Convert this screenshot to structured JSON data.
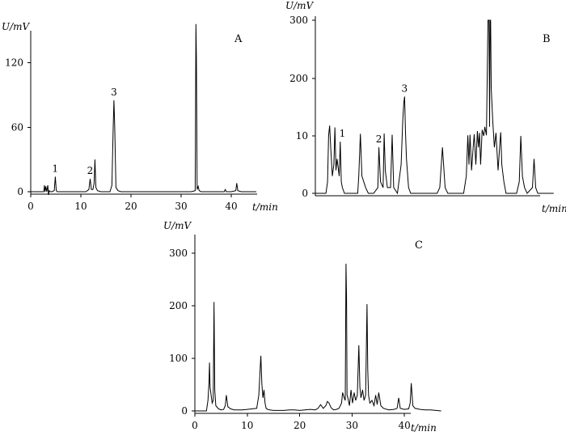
{
  "chart_data": [
    {
      "type": "line",
      "panel_label": "A",
      "ylabel": "U/mV",
      "xlabel": "t/min",
      "xlim": [
        0,
        45
      ],
      "ylim": [
        -3,
        156
      ],
      "x_ticks": [
        0,
        10,
        20,
        30,
        40
      ],
      "y_ticks": [
        0,
        60,
        120
      ],
      "grid": false,
      "series": [
        {
          "x": [
            0,
            2.6,
            2.75,
            2.85,
            3.0,
            3.2,
            3.4,
            3.55,
            3.7,
            3.9,
            4.2,
            4.7,
            4.9,
            5.1,
            5.3,
            6,
            7,
            8,
            9,
            10,
            11,
            11.6,
            11.85,
            12.1,
            12.4,
            12.65,
            12.8,
            13.0,
            13.3,
            14,
            15,
            15.8,
            16.2,
            16.45,
            16.6,
            16.75,
            17.0,
            17.4,
            18,
            19,
            20,
            21,
            22,
            23,
            24,
            25,
            26,
            27,
            28,
            29,
            30,
            31,
            32,
            32.8,
            32.95,
            33.05,
            33.2,
            33.4,
            33.6,
            34,
            35,
            36,
            37,
            38,
            38.6,
            38.8,
            39,
            40,
            40.9,
            41.1,
            41.3,
            42,
            43,
            44,
            45
          ],
          "y": [
            0,
            0,
            6,
            0,
            5,
            0,
            6,
            -3,
            1,
            0,
            0,
            1,
            14,
            1,
            0,
            0,
            0,
            0,
            0,
            0,
            0,
            2,
            12,
            2,
            2,
            8,
            30,
            4,
            1,
            0,
            0,
            0,
            6,
            60,
            85,
            60,
            4,
            1,
            0,
            0,
            0,
            0,
            0,
            0,
            0,
            0,
            0,
            0,
            0,
            0,
            0,
            0,
            0,
            1,
            156,
            125,
            2,
            5,
            1,
            0,
            0,
            0,
            0,
            0,
            0,
            2,
            0,
            0,
            1,
            8,
            1,
            0,
            0,
            0,
            0
          ]
        }
      ],
      "annotations": [
        {
          "text": "1",
          "x": 4.9,
          "y": 14
        },
        {
          "text": "2",
          "x": 11.85,
          "y": 12
        },
        {
          "text": "3",
          "x": 16.6,
          "y": 85
        }
      ]
    },
    {
      "type": "line",
      "panel_label": "B",
      "ylabel": "U/mV",
      "xlabel": "t/min",
      "xlim": [
        0,
        45
      ],
      "y_ticks": [
        0,
        10,
        200,
        300
      ],
      "grid": false,
      "series": [
        {
          "x": [
            0,
            2.0,
            2.3,
            2.5,
            2.7,
            2.9,
            3.2,
            3.5,
            3.7,
            3.9,
            4.1,
            4.5,
            4.7,
            4.9,
            5.1,
            5.5,
            6,
            7,
            8,
            8.2,
            8.5,
            8.8,
            9.5,
            10,
            11,
            11.8,
            12.0,
            12.3,
            12.8,
            13.0,
            13.2,
            13.6,
            14.2,
            14.5,
            14.8,
            15.5,
            16.2,
            16.5,
            16.7,
            16.85,
            17.0,
            17.2,
            17.6,
            18,
            19,
            20,
            21,
            22,
            23,
            23.5,
            24.0,
            24.5,
            25,
            26,
            27,
            28,
            28.5,
            28.8,
            29.0,
            29.2,
            29.5,
            29.8,
            30.0,
            30.3,
            30.6,
            30.8,
            31.0,
            31.2,
            31.5,
            31.8,
            32.0,
            32.3,
            32.6,
            32.7,
            32.75,
            32.8,
            32.9,
            33.0,
            33.05,
            33.1,
            33.2,
            33.5,
            33.8,
            34.1,
            34.5,
            34.8,
            35.0,
            35.2,
            35.6,
            36,
            37,
            38,
            38.5,
            38.8,
            39.1,
            39.5,
            40,
            41,
            41.3,
            41.6,
            42,
            43,
            44,
            45
          ],
          "y": [
            0,
            0,
            2,
            12,
            44,
            8,
            3,
            5,
            38,
            4,
            6,
            3,
            9,
            2,
            1,
            0,
            0,
            0,
            0,
            3,
            17,
            3,
            1,
            0,
            0,
            1,
            8,
            2,
            1,
            18,
            4,
            1,
            1,
            14,
            1,
            0,
            5,
            60,
            120,
            140,
            30,
            6,
            1,
            0,
            0,
            0,
            0,
            0,
            0,
            1,
            8,
            1,
            0,
            0,
            0,
            0,
            3,
            12,
            5,
            14,
            4,
            8,
            15,
            5,
            26,
            8,
            20,
            5,
            30,
            10,
            40,
            12,
            300,
            300,
            300,
            300,
            40,
            300,
            300,
            300,
            170,
            60,
            8,
            20,
            4,
            8,
            22,
            5,
            2,
            0,
            0,
            0,
            2,
            10,
            3,
            1,
            0,
            1,
            6,
            1,
            0,
            0,
            0,
            0
          ]
        }
      ],
      "annotations": [
        {
          "text": "1",
          "x": 5.1,
          "y": 9
        },
        {
          "text": "2",
          "x": 12.0,
          "y": 8
        },
        {
          "text": "3",
          "x": 16.85,
          "y": 140
        }
      ]
    },
    {
      "type": "line",
      "panel_label": "C",
      "ylabel": "U/mV",
      "xlabel": "t/min",
      "xlim": [
        0,
        47
      ],
      "ylim": [
        -10,
        310
      ],
      "x_ticks": [
        0,
        10,
        20,
        30,
        40
      ],
      "y_ticks": [
        0,
        100,
        200,
        300
      ],
      "grid": false,
      "series": [
        {
          "x": [
            0,
            2.2,
            2.5,
            2.7,
            2.8,
            2.9,
            3.1,
            3.3,
            3.5,
            3.65,
            3.8,
            4.0,
            4.5,
            5.0,
            5.5,
            5.8,
            6.0,
            6.3,
            6.8,
            7.5,
            8,
            9,
            10,
            11,
            11.8,
            12.2,
            12.4,
            12.6,
            12.8,
            13.0,
            13.2,
            13.4,
            13.6,
            13.9,
            14.3,
            15,
            16,
            17,
            18,
            19,
            20,
            21,
            22,
            23,
            23.5,
            24.0,
            24.5,
            25.0,
            25.3,
            25.6,
            26.0,
            26.5,
            27,
            27.5,
            28.0,
            28.2,
            28.5,
            28.7,
            28.85,
            28.95,
            29.05,
            29.2,
            29.5,
            29.8,
            30.1,
            30.4,
            30.7,
            31.0,
            31.3,
            31.5,
            31.7,
            32.0,
            32.3,
            32.6,
            32.85,
            33.0,
            33.15,
            33.4,
            33.8,
            34.2,
            34.5,
            34.8,
            35.1,
            35.5,
            36,
            37,
            38,
            38.6,
            38.9,
            39.2,
            40,
            40.8,
            41.1,
            41.3,
            41.6,
            42,
            43,
            44,
            45,
            46,
            47
          ],
          "y": [
            0,
            0,
            20,
            55,
            92,
            45,
            30,
            15,
            20,
            207,
            40,
            10,
            4,
            2,
            3,
            10,
            30,
            8,
            4,
            2,
            2,
            2,
            3,
            4,
            5,
            30,
            70,
            105,
            50,
            25,
            40,
            15,
            5,
            3,
            2,
            1,
            1,
            1,
            2,
            2,
            1,
            2,
            3,
            2,
            5,
            12,
            5,
            10,
            18,
            15,
            6,
            2,
            3,
            5,
            15,
            35,
            25,
            20,
            280,
            215,
            30,
            25,
            10,
            40,
            15,
            35,
            20,
            30,
            125,
            45,
            25,
            40,
            20,
            30,
            203,
            80,
            30,
            15,
            20,
            10,
            30,
            12,
            35,
            10,
            5,
            2,
            3,
            5,
            25,
            5,
            3,
            4,
            15,
            53,
            10,
            5,
            3,
            2,
            2,
            1,
            0
          ]
        }
      ]
    }
  ]
}
